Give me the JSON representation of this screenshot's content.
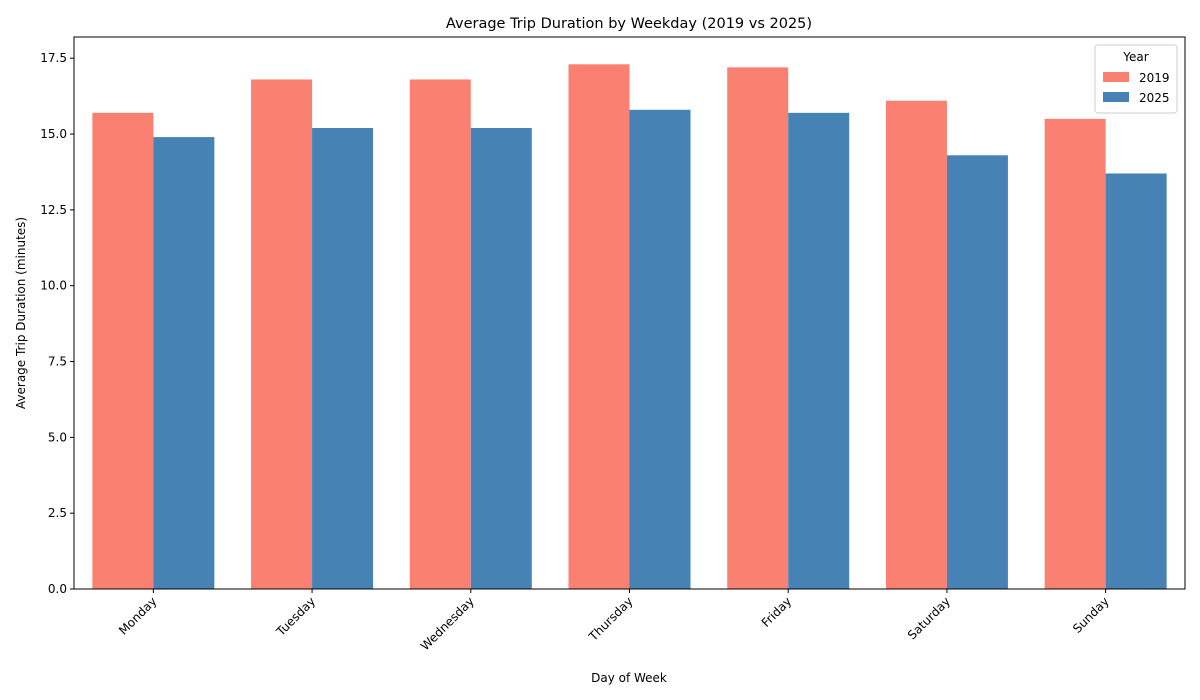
{
  "chart_data": {
    "type": "bar",
    "title": "Average Trip Duration by Weekday (2019 vs 2025)",
    "xlabel": "Day of Week",
    "ylabel": "Average Trip Duration (minutes)",
    "categories": [
      "Monday",
      "Tuesday",
      "Wednesday",
      "Thursday",
      "Friday",
      "Saturday",
      "Sunday"
    ],
    "series": [
      {
        "name": "2019",
        "color": "#fa8072",
        "values": [
          15.7,
          16.8,
          16.8,
          17.3,
          17.2,
          16.1,
          15.5
        ]
      },
      {
        "name": "2025",
        "color": "#4682b4",
        "values": [
          14.9,
          15.2,
          15.2,
          15.8,
          15.7,
          14.3,
          13.7
        ]
      }
    ],
    "ylim": [
      0,
      18.2
    ],
    "yticks": [
      0.0,
      2.5,
      5.0,
      7.5,
      10.0,
      12.5,
      15.0,
      17.5
    ],
    "ytick_labels": [
      "0.0",
      "2.5",
      "5.0",
      "7.5",
      "10.0",
      "12.5",
      "15.0",
      "17.5"
    ],
    "legend": {
      "title": "Year",
      "position": "top-right"
    },
    "grid": false,
    "xtick_rotation": 45
  }
}
